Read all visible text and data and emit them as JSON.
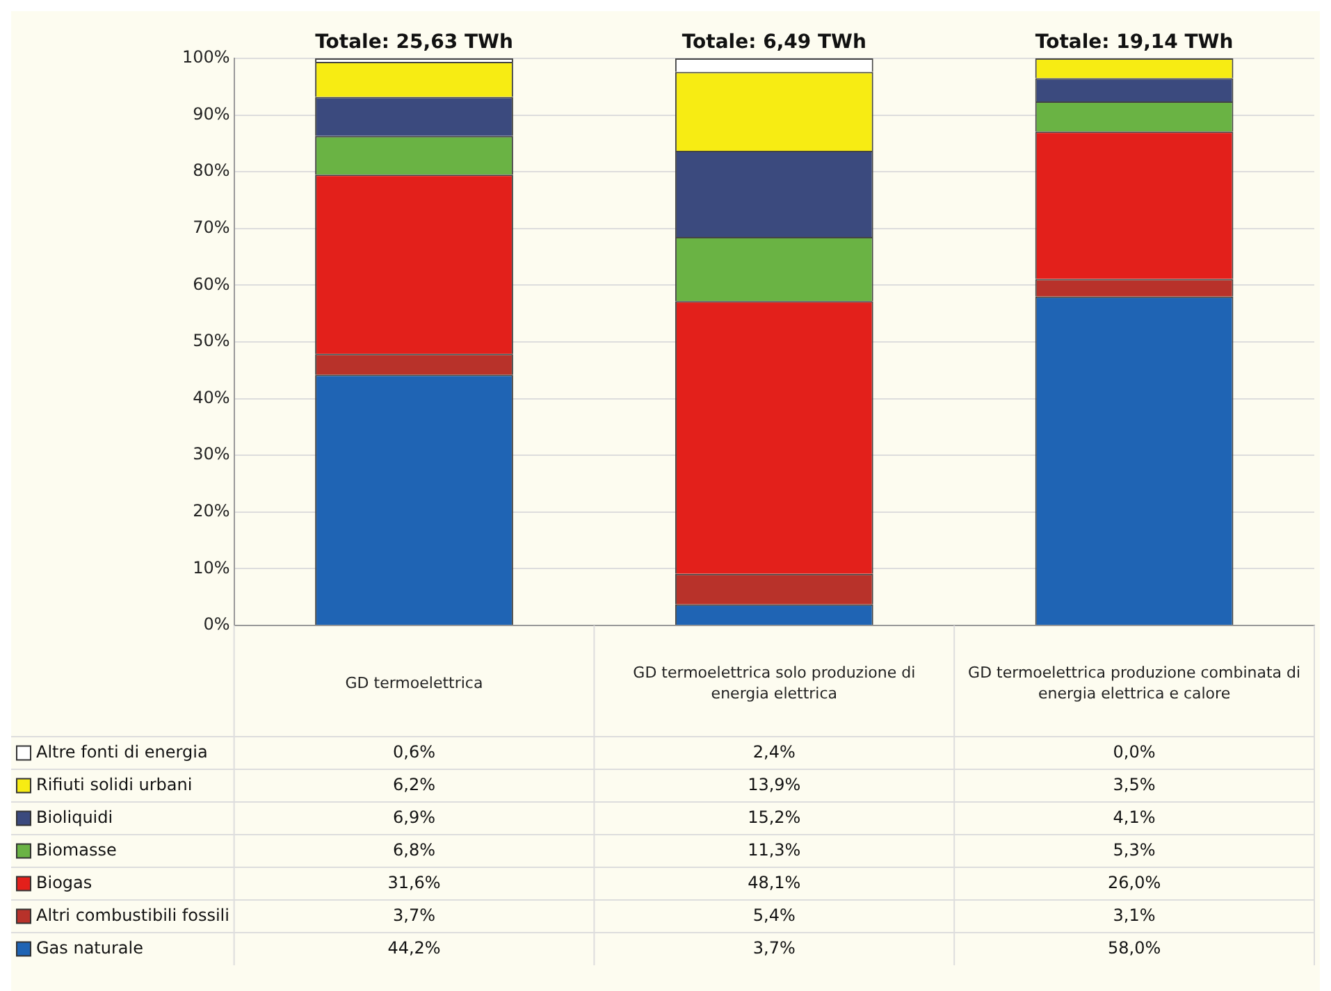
{
  "chart_data": {
    "type": "bar",
    "stacked": true,
    "categories": [
      "GD termoelettrica",
      "GD termoelettrica solo produzione di energia elettrica",
      "GD termoelettrica produzione combinata di energia elettrica e calore"
    ],
    "series": [
      {
        "name": "Gas naturale",
        "color": "#1f64b4",
        "values": [
          44.2,
          3.7,
          58.0
        ],
        "value_labels": [
          "44,2%",
          "3,7%",
          "58,0%"
        ]
      },
      {
        "name": "Altri combustibili fossili",
        "color": "#b8322a",
        "values": [
          3.7,
          5.4,
          3.1
        ],
        "value_labels": [
          "3,7%",
          "5,4%",
          "3,1%"
        ]
      },
      {
        "name": "Biogas",
        "color": "#e3201b",
        "values": [
          31.6,
          48.1,
          26.0
        ],
        "value_labels": [
          "31,6%",
          "48,1%",
          "26,0%"
        ]
      },
      {
        "name": "Biomasse",
        "color": "#6ab344",
        "values": [
          6.8,
          11.3,
          5.3
        ],
        "value_labels": [
          "6,8%",
          "11,3%",
          "5,3%"
        ]
      },
      {
        "name": "Bioliquidi",
        "color": "#3b4a7e",
        "values": [
          6.9,
          15.2,
          4.1
        ],
        "value_labels": [
          "6,9%",
          "15,2%",
          "4,1%"
        ]
      },
      {
        "name": "Rifiuti solidi urbani",
        "color": "#f7ec13",
        "values": [
          6.2,
          13.9,
          3.5
        ],
        "value_labels": [
          "6,2%",
          "13,9%",
          "3,5%"
        ]
      },
      {
        "name": "Altre fonti di energia",
        "color": "#ffffff",
        "values": [
          0.6,
          2.4,
          0.0
        ],
        "value_labels": [
          "0,6%",
          "2,4%",
          "0,0%"
        ]
      }
    ],
    "annotations": [
      {
        "text": "Totale: 25,63 TWh",
        "x": "GD termoelettrica",
        "y": 100
      },
      {
        "text": "Totale: 6,49 TWh",
        "x": "GD termoelettrica solo produzione di energia elettrica",
        "y": 100
      },
      {
        "text": "Totale: 19,14 TWh",
        "x": "GD termoelettrica produzione combinata di energia elettrica e calore",
        "y": 100
      }
    ],
    "ylim": [
      0,
      100
    ],
    "yticks": [
      {
        "value": 0,
        "label": "0%"
      },
      {
        "value": 10,
        "label": "10%"
      },
      {
        "value": 20,
        "label": "20%"
      },
      {
        "value": 30,
        "label": "30%"
      },
      {
        "value": 40,
        "label": "40%"
      },
      {
        "value": 50,
        "label": "50%"
      },
      {
        "value": 60,
        "label": "60%"
      },
      {
        "value": 70,
        "label": "70%"
      },
      {
        "value": 80,
        "label": "80%"
      },
      {
        "value": 90,
        "label": "90%"
      },
      {
        "value": 100,
        "label": "100%"
      }
    ],
    "grid": "y",
    "legend": "bottom left",
    "data_labels": true
  }
}
